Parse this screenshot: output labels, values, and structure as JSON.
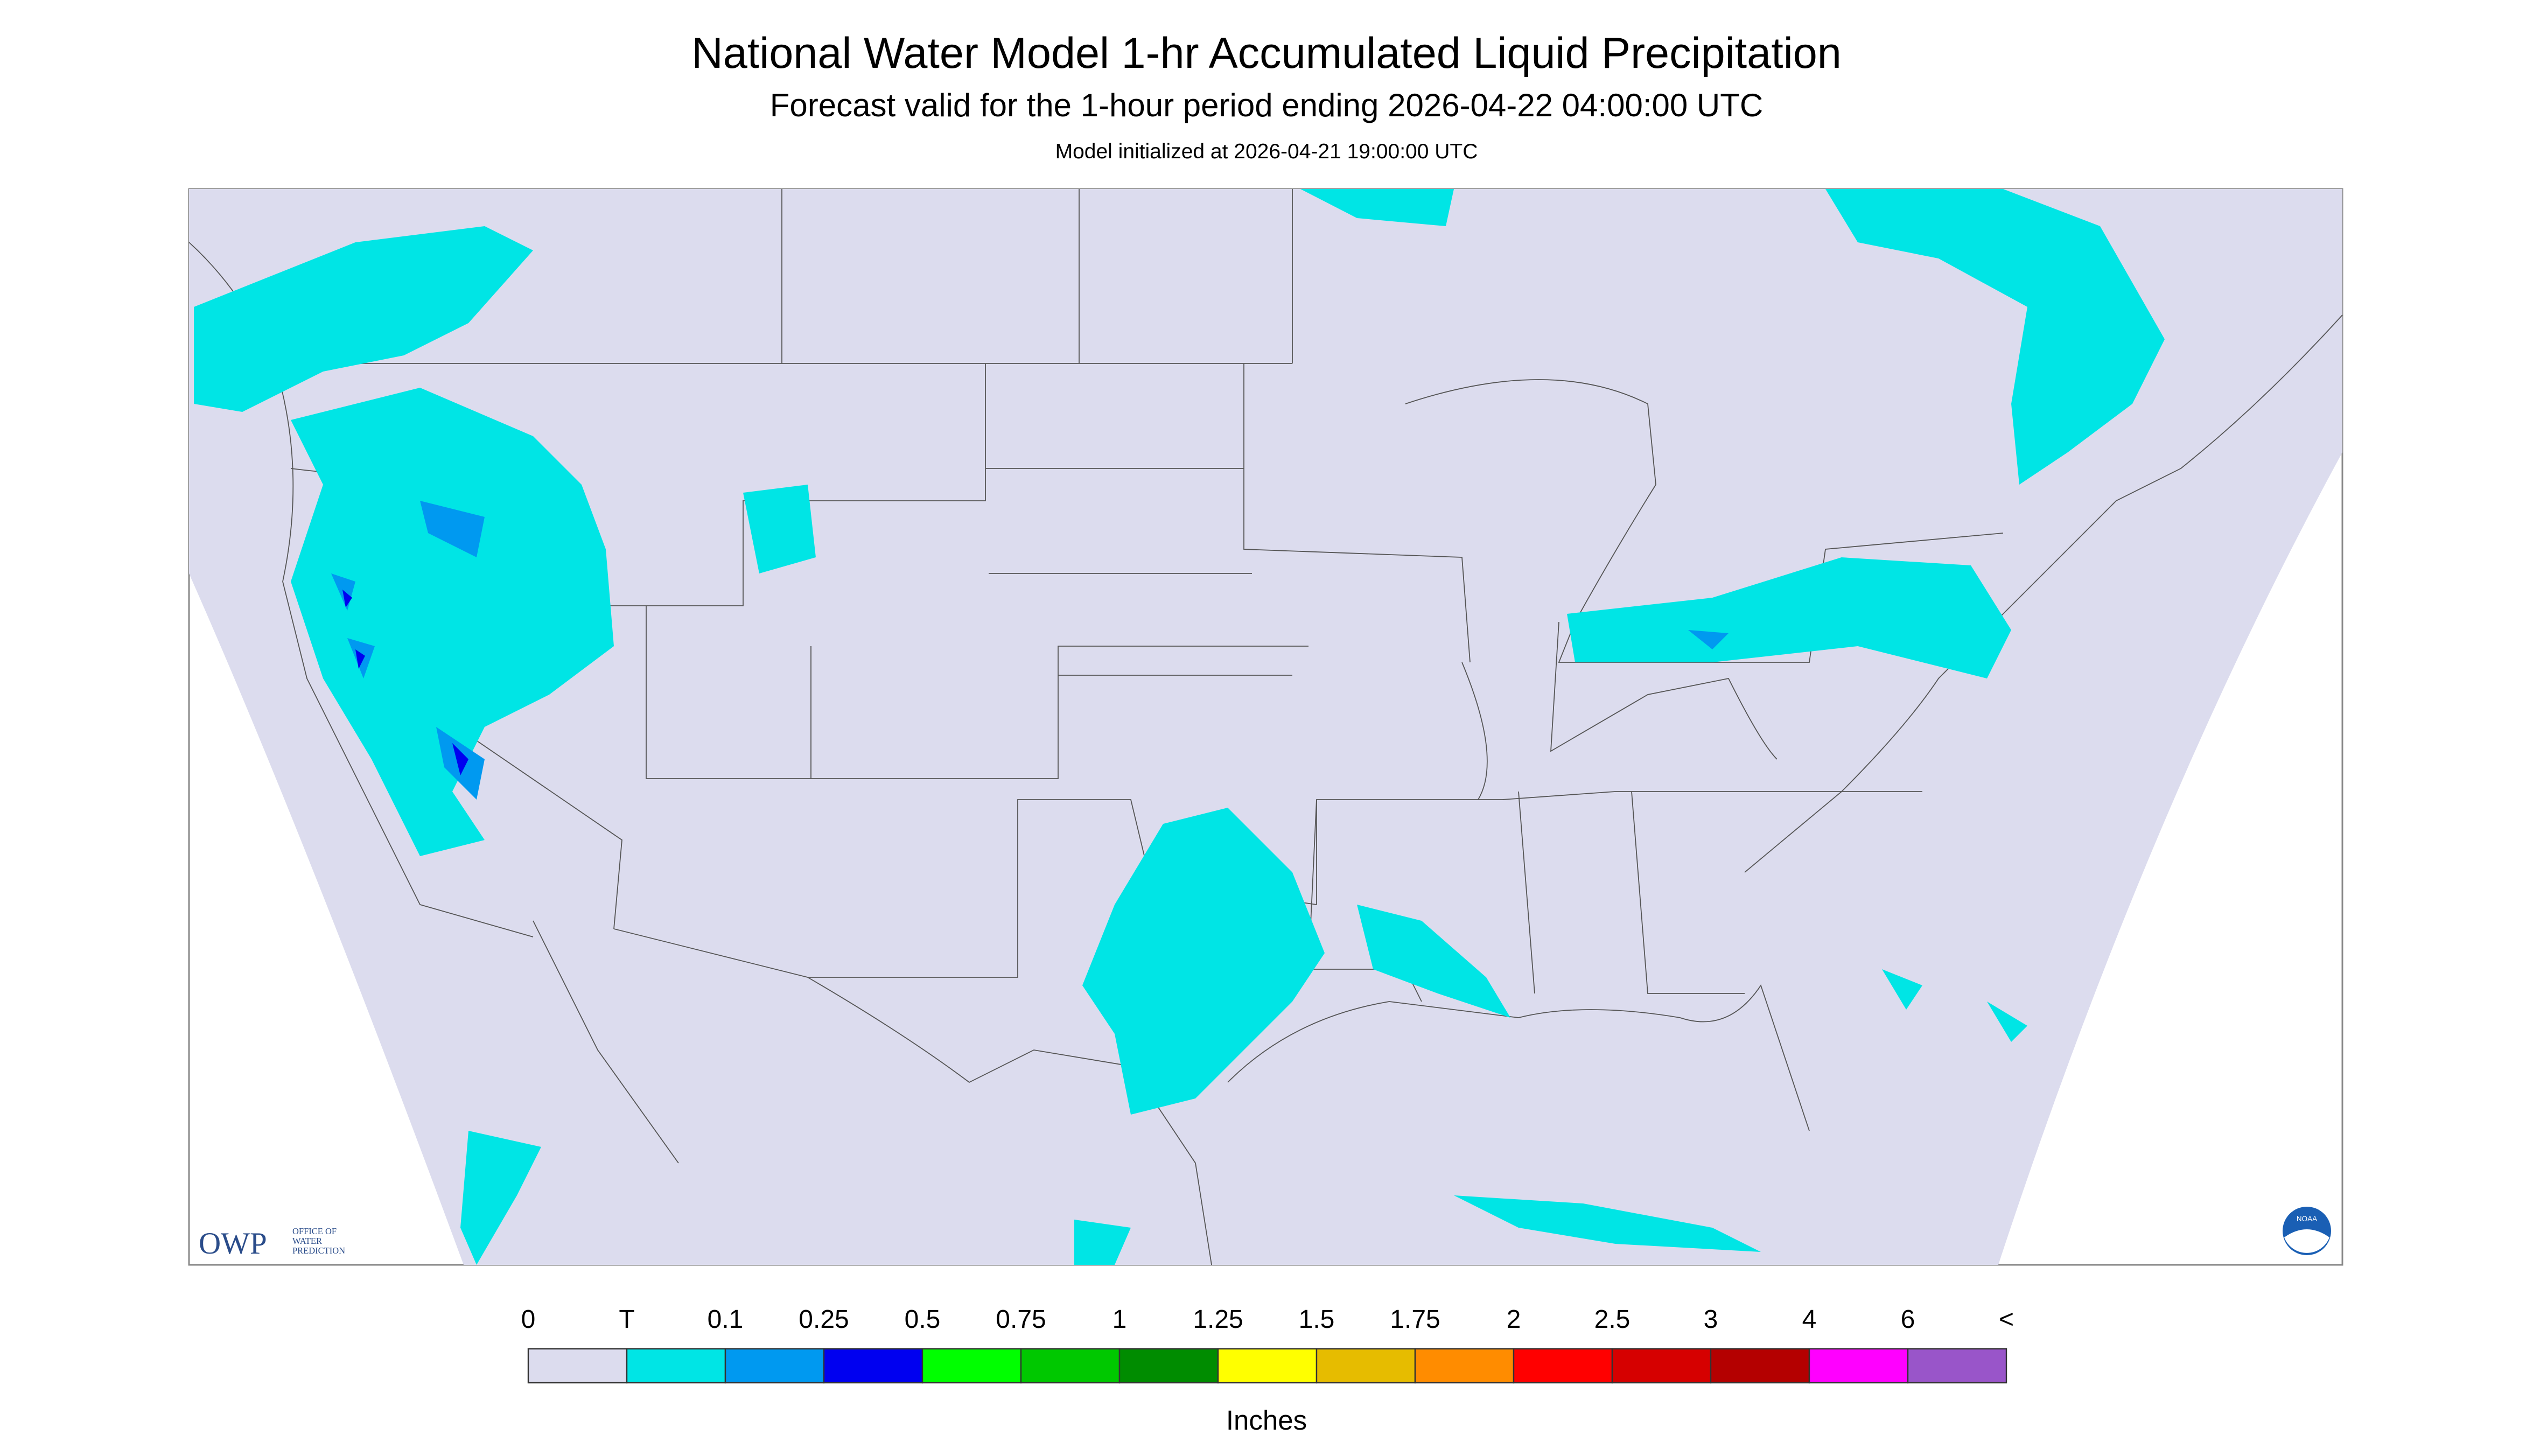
{
  "header": {
    "title": "National Water Model 1-hr Accumulated Liquid Precipitation",
    "subtitle": "Forecast valid for the 1-hour period ending 2026-04-22 04:00:00 UTC",
    "init": "Model initialized at 2026-04-21 19:00:00 UTC"
  },
  "legend": {
    "labels": [
      "0",
      "T",
      "0.1",
      "0.25",
      "0.5",
      "0.75",
      "1",
      "1.25",
      "1.5",
      "1.75",
      "2",
      "2.5",
      "3",
      "4",
      "6",
      "<"
    ],
    "colors": [
      "#dcdcee",
      "#00e5e5",
      "#0099f0",
      "#0000f0",
      "#00ff00",
      "#00c800",
      "#008c00",
      "#ffff00",
      "#e6bc00",
      "#ff8c00",
      "#ff0000",
      "#d60000",
      "#b40000",
      "#ff00ff",
      "#9955c9"
    ],
    "unit": "Inches"
  },
  "logos": {
    "owp": "OWP",
    "owp_text": [
      "OFFICE OF",
      "WATER",
      "PREDICTION"
    ],
    "noaa": "NOAA"
  }
}
